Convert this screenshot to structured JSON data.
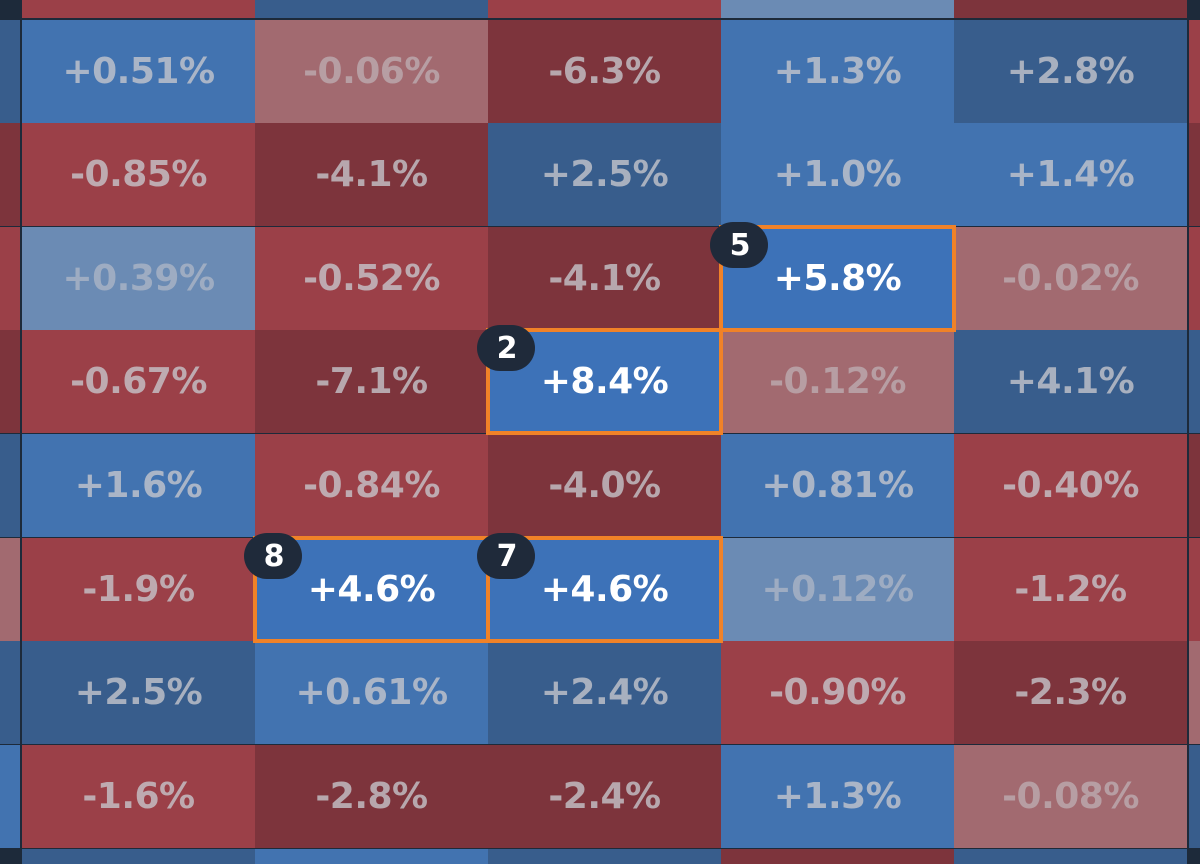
{
  "colors": {
    "strong_blue": "#3d72b8",
    "blue": "#4273b0",
    "dark_blue": "#385d8c",
    "pale_blue": "#6b8bb4",
    "red": "#9b4048",
    "dark_red": "#7d343c",
    "pale_red": "#a26a70",
    "highlight_border": "#f08228",
    "badge_bg": "#1f2a3a"
  },
  "heatmap": {
    "rows": [
      [
        "+0.51%",
        "-0.06%",
        "-6.3%",
        "+1.3%",
        "+2.8%"
      ],
      [
        "-0.85%",
        "-4.1%",
        "+2.5%",
        "+1.0%",
        "+1.4%"
      ],
      [
        "+0.39%",
        "-0.52%",
        "-4.1%",
        "+5.8%",
        "-0.02%"
      ],
      [
        "-0.67%",
        "-7.1%",
        "+8.4%",
        "-0.12%",
        "+4.1%"
      ],
      [
        "+1.6%",
        "-0.84%",
        "-4.0%",
        "+0.81%",
        "-0.40%"
      ],
      [
        "-1.9%",
        "+4.6%",
        "+4.6%",
        "+0.12%",
        "-1.2%"
      ],
      [
        "+2.5%",
        "+0.61%",
        "+2.4%",
        "-0.90%",
        "-2.3%"
      ],
      [
        "-1.6%",
        "-2.8%",
        "-2.4%",
        "+1.3%",
        "-0.08%"
      ]
    ],
    "highlights": [
      {
        "row": 2,
        "col": 3,
        "badge": "5"
      },
      {
        "row": 3,
        "col": 2,
        "badge": "2"
      },
      {
        "row": 5,
        "col": 1,
        "badge": "8"
      },
      {
        "row": 5,
        "col": 2,
        "badge": "7"
      }
    ]
  }
}
